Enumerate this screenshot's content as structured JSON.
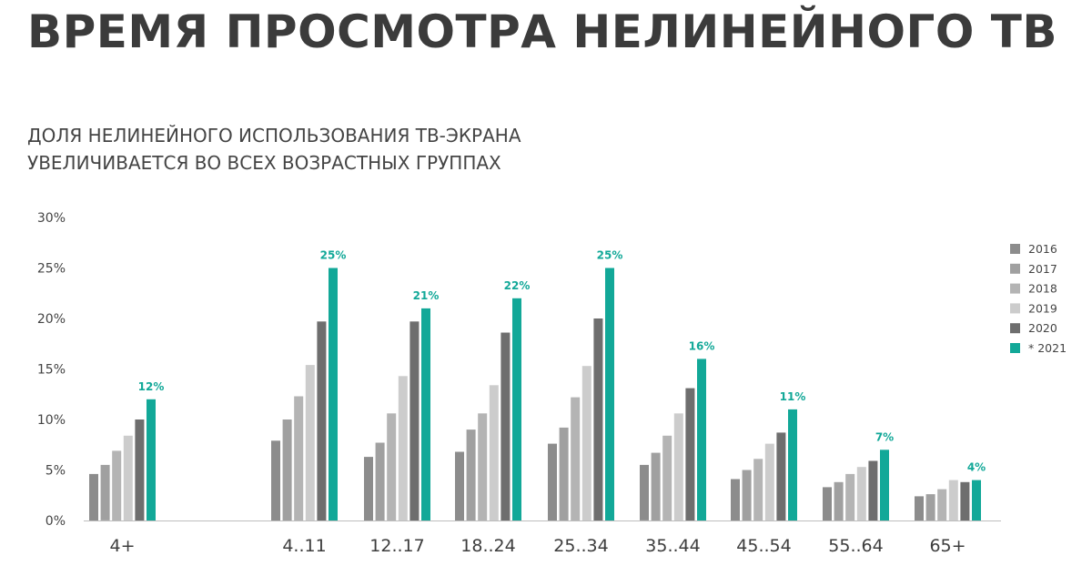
{
  "header": {
    "title": "ВРЕМЯ ПРОСМОТРА НЕЛИНЕЙНОГО ТВ",
    "subtitle_line1": "ДОЛЯ НЕЛИНЕЙНОГО ИСПОЛЬЗОВАНИЯ ТВ-ЭКРАНА",
    "subtitle_line2": "УВЕЛИЧИВАЕТСЯ ВО ВСЕХ ВОЗРАСТНЫХ ГРУППАХ"
  },
  "chart_data": {
    "type": "bar",
    "categories": [
      "4+",
      "4..11",
      "12..17",
      "18..24",
      "25..34",
      "35..44",
      "45..54",
      "55..64",
      "65+"
    ],
    "series": [
      {
        "name": "2016",
        "color": "#8c8c8c",
        "values": [
          4.6,
          7.9,
          6.3,
          6.8,
          7.6,
          5.5,
          4.1,
          3.3,
          2.4
        ]
      },
      {
        "name": "2017",
        "color": "#a0a0a0",
        "values": [
          5.5,
          10.0,
          7.7,
          9.0,
          9.2,
          6.7,
          5.0,
          3.8,
          2.6
        ]
      },
      {
        "name": "2018",
        "color": "#b4b4b4",
        "values": [
          6.9,
          12.3,
          10.6,
          10.6,
          12.2,
          8.4,
          6.1,
          4.6,
          3.1
        ]
      },
      {
        "name": "2019",
        "color": "#cccccc",
        "values": [
          8.4,
          15.4,
          14.3,
          13.4,
          15.3,
          10.6,
          7.6,
          5.3,
          4.0
        ]
      },
      {
        "name": "2020",
        "color": "#6e6e6e",
        "values": [
          10.0,
          19.7,
          19.7,
          18.6,
          20.0,
          13.1,
          8.7,
          5.9,
          3.8
        ]
      },
      {
        "name": "* 2021",
        "color": "#12a898",
        "values": [
          12,
          25,
          21,
          22,
          25,
          16,
          11,
          7,
          4
        ]
      }
    ],
    "data_labels": [
      "12%",
      "25%",
      "21%",
      "22%",
      "25%",
      "16%",
      "11%",
      "7%",
      "4%"
    ],
    "y_ticks": [
      "0%",
      "5%",
      "10%",
      "15%",
      "20%",
      "25%",
      "30%"
    ],
    "ylim": [
      0,
      30
    ],
    "grid": false,
    "legend_position": "right",
    "xlabel": "",
    "ylabel": ""
  }
}
